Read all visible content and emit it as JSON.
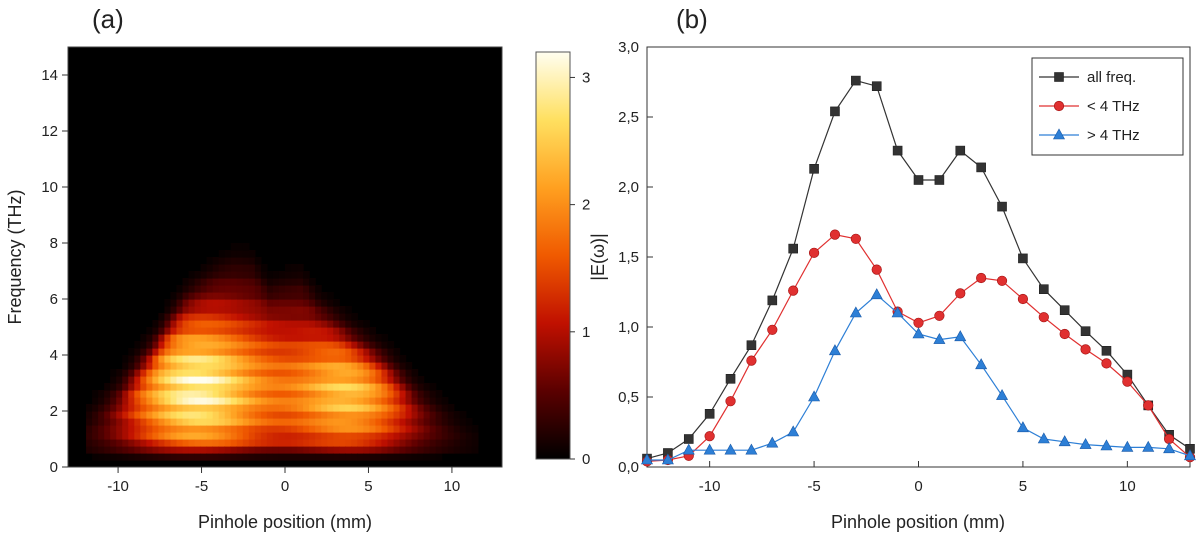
{
  "panel_a_label": "(a)",
  "panel_b_label": "(b)",
  "chart_data": [
    {
      "type": "heatmap",
      "xlabel": "Pinhole position (mm)",
      "ylabel": "Frequency (THz)",
      "xlim": [
        -13,
        13
      ],
      "ylim": [
        0,
        15
      ],
      "xticks": [
        -10,
        -5,
        0,
        5,
        10
      ],
      "xtick_labels": [
        "-10",
        "-5",
        "0",
        "5",
        "10"
      ],
      "yticks": [
        0,
        2,
        4,
        6,
        8,
        10,
        12,
        14
      ],
      "ytick_labels": [
        "0",
        "2",
        "4",
        "6",
        "8",
        "10",
        "12",
        "14"
      ],
      "colorbar": {
        "range": [
          0,
          3.2
        ],
        "ticks": [
          0,
          1,
          2,
          3
        ],
        "tick_labels": [
          "0",
          "1",
          "2",
          "3"
        ],
        "colormap": [
          "#000000",
          "#5a0000",
          "#c01000",
          "#f05a00",
          "#ffa020",
          "#ffe060",
          "#fffef0"
        ]
      },
      "lobes": [
        {
          "x_center": -5.5,
          "y_center": 2.8,
          "x_spread": 3.0,
          "y_spread": 1.9,
          "peak": 2.6
        },
        {
          "x_center": 4.0,
          "y_center": 2.6,
          "x_spread": 2.7,
          "y_spread": 1.6,
          "peak": 1.9
        }
      ],
      "upper_edge": {
        "x": [
          -12,
          -10,
          -8,
          -6,
          -4,
          -3,
          -2,
          -1,
          0,
          1,
          2,
          4,
          6,
          8,
          10,
          11.5
        ],
        "frequency_thz": [
          1.5,
          2.5,
          4.0,
          6.0,
          7.2,
          7.6,
          7.5,
          6.3,
          6.6,
          6.8,
          5.8,
          4.6,
          3.6,
          2.4,
          1.6,
          1.0
        ]
      }
    },
    {
      "type": "line",
      "xlabel": "Pinhole position (mm)",
      "ylabel": "|E(ω)|",
      "xlim": [
        -13,
        13
      ],
      "ylim": [
        0,
        3.0
      ],
      "xticks": [
        -10,
        -5,
        0,
        5,
        10
      ],
      "xtick_labels": [
        "-10",
        "-5",
        "0",
        "5",
        "10"
      ],
      "yticks": [
        0,
        0.5,
        1.0,
        1.5,
        2.0,
        2.5,
        3.0
      ],
      "ytick_labels": [
        "0,0",
        "0,5",
        "1,0",
        "1,5",
        "2,0",
        "2,5",
        "3,0"
      ],
      "legend_position": "top-right",
      "x": [
        -13,
        -12,
        -11,
        -10,
        -9,
        -8,
        -7,
        -6,
        -5,
        -4,
        -3,
        -2,
        -1,
        0,
        1,
        2,
        3,
        4,
        5,
        6,
        7,
        8,
        9,
        10,
        11,
        12,
        13
      ],
      "series": [
        {
          "name": "all freq.",
          "color": "#333333",
          "marker": "square",
          "values": [
            0.06,
            0.1,
            0.2,
            0.38,
            0.63,
            0.87,
            1.19,
            1.56,
            2.13,
            2.54,
            2.76,
            2.72,
            2.26,
            2.05,
            2.05,
            2.26,
            2.14,
            1.86,
            1.49,
            1.27,
            1.12,
            0.97,
            0.83,
            0.66,
            0.44,
            0.23,
            0.13
          ]
        },
        {
          "name": "< 4 THz",
          "color": "#e03030",
          "marker": "circle",
          "values": [
            0.04,
            0.05,
            0.08,
            0.22,
            0.47,
            0.76,
            0.98,
            1.26,
            1.53,
            1.66,
            1.63,
            1.41,
            1.11,
            1.03,
            1.08,
            1.24,
            1.35,
            1.33,
            1.2,
            1.07,
            0.95,
            0.84,
            0.74,
            0.61,
            0.44,
            0.2,
            0.07
          ]
        },
        {
          "name": "> 4 THz",
          "color": "#2d7fd6",
          "marker": "triangle",
          "values": [
            0.05,
            0.05,
            0.12,
            0.12,
            0.12,
            0.12,
            0.17,
            0.25,
            0.5,
            0.83,
            1.1,
            1.23,
            1.1,
            0.95,
            0.91,
            0.93,
            0.73,
            0.51,
            0.28,
            0.2,
            0.18,
            0.16,
            0.15,
            0.14,
            0.14,
            0.13,
            0.08
          ]
        }
      ]
    }
  ]
}
